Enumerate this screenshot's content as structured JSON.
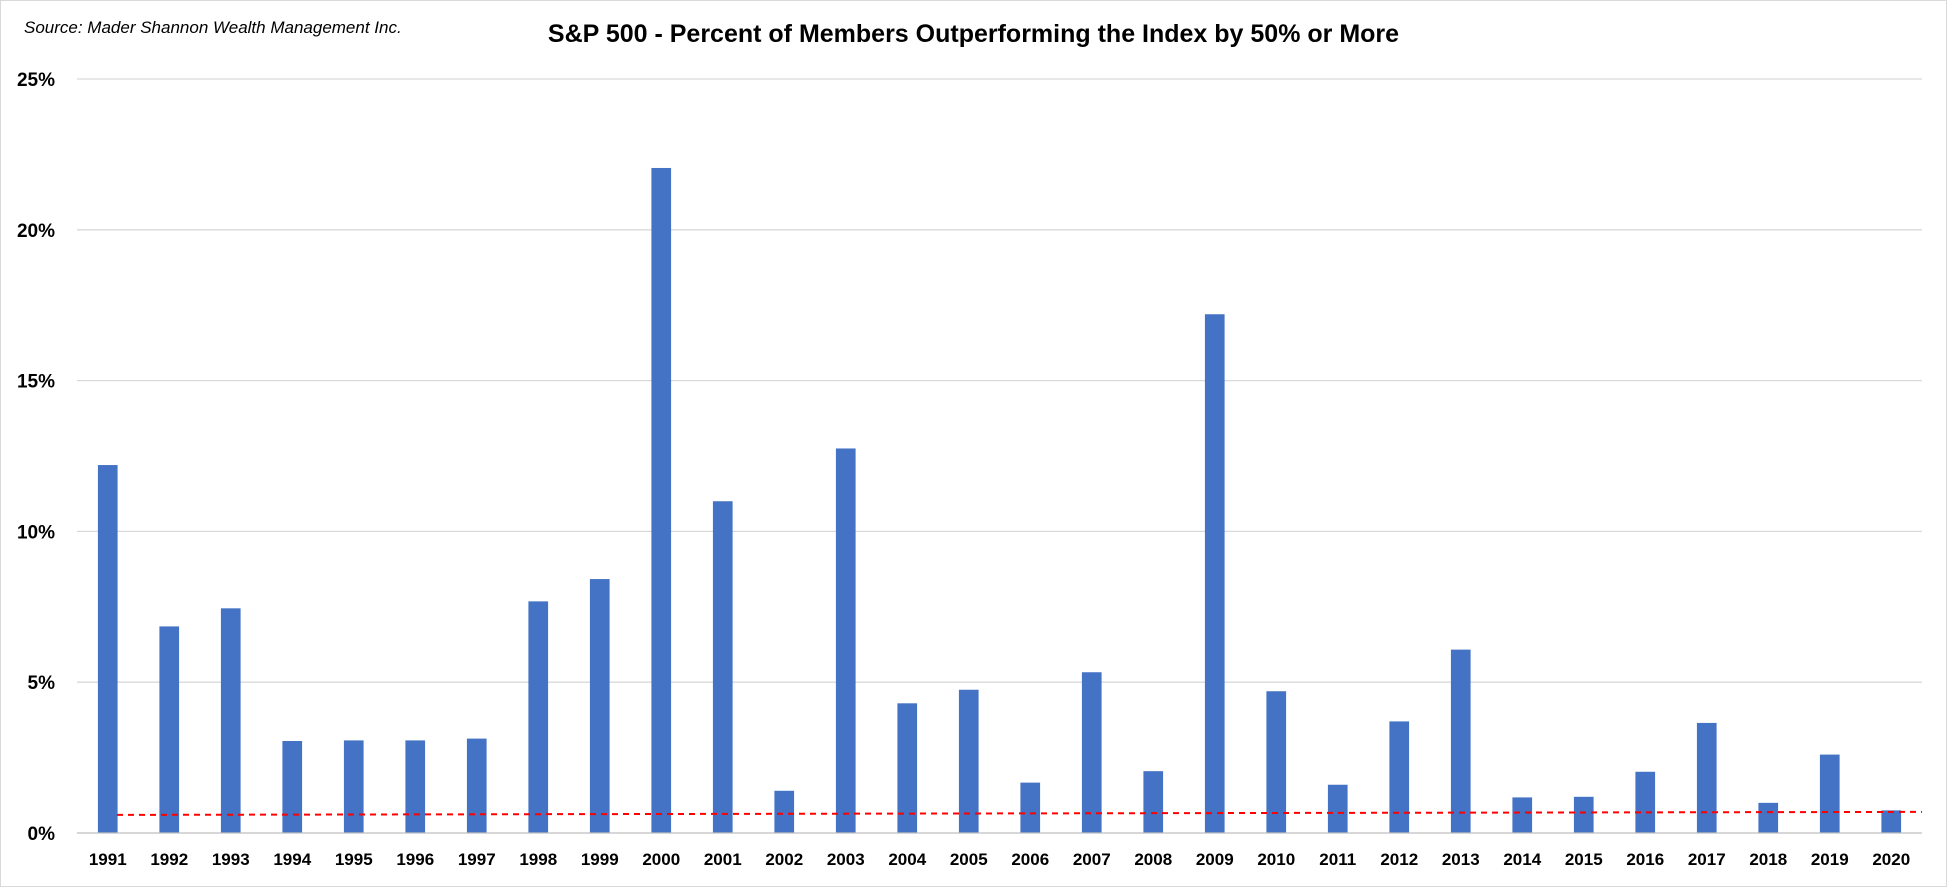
{
  "source_note": "Source: Mader Shannon Wealth Management Inc.",
  "chart_data": {
    "type": "bar",
    "title": "S&P 500 - Percent of Members Outperforming the Index by 50% or More",
    "xlabel": "",
    "ylabel": "",
    "categories": [
      "1991",
      "1992",
      "1993",
      "1994",
      "1995",
      "1996",
      "1997",
      "1998",
      "1999",
      "2000",
      "2001",
      "2002",
      "2003",
      "2004",
      "2005",
      "2006",
      "2007",
      "2008",
      "2009",
      "2010",
      "2011",
      "2012",
      "2013",
      "2014",
      "2015",
      "2016",
      "2017",
      "2018",
      "2019",
      "2020"
    ],
    "values": [
      12.2,
      6.85,
      7.45,
      3.05,
      3.07,
      3.07,
      3.13,
      7.68,
      8.42,
      22.05,
      11.0,
      1.4,
      12.75,
      4.3,
      4.75,
      1.67,
      5.33,
      2.05,
      17.2,
      4.7,
      1.6,
      3.7,
      6.08,
      1.18,
      1.2,
      2.03,
      3.65,
      1.0,
      2.6,
      0.75
    ],
    "ylim": [
      0,
      25
    ],
    "yticks": [
      0,
      5,
      10,
      15,
      20,
      25
    ],
    "ytick_labels": [
      "0%",
      "5%",
      "10%",
      "15%",
      "20%",
      "25%"
    ],
    "grid": true,
    "legend": "none",
    "reference_line": {
      "style": "dashed",
      "color": "#ff0000",
      "start_value": 0.6,
      "end_value": 0.7
    },
    "colors": {
      "bar": "#4472c4",
      "grid": "#d9d9d9",
      "axis": "#bfbfbf"
    }
  }
}
